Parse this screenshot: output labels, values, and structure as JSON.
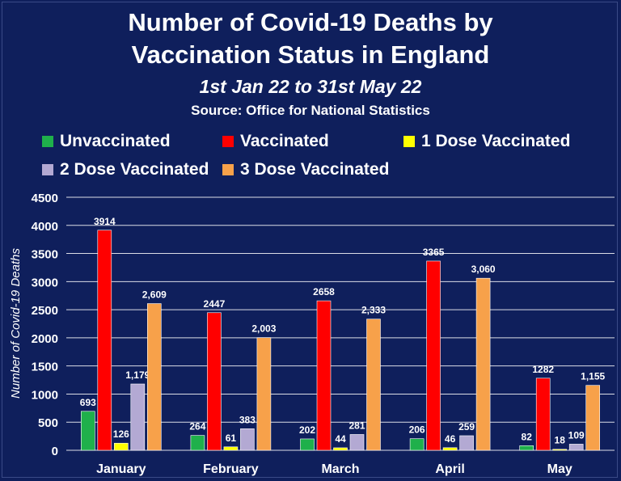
{
  "colors": {
    "background": "#0f1f5c",
    "Unvaccinated": "#1fb04b",
    "Vaccinated": "#ff0000",
    "1 Dose Vaccinated": "#ffff00",
    "2 Dose Vaccinated": "#b3a9d3",
    "3 Dose Vaccinated": "#f7a14a"
  },
  "chart_data": {
    "type": "bar",
    "title": "Number of Covid-19 Deaths by Vaccination Status in England",
    "title_line1": "Number of Covid-19 Deaths by",
    "title_line2": "Vaccination Status in England",
    "subtitle": "1st Jan 22 to 31st May 22",
    "source": "Source: Office for National Statistics",
    "ylabel": "Number of Covid-19 Deaths",
    "xlabel": "",
    "ylim": [
      0,
      4500
    ],
    "yticks": [
      "0",
      "500",
      "1000",
      "1500",
      "2000",
      "2500",
      "3000",
      "3500",
      "4000",
      "4500"
    ],
    "grid": true,
    "legend_position": "top",
    "categories": [
      "January",
      "February",
      "March",
      "April",
      "May"
    ],
    "series": [
      {
        "name": "Unvaccinated",
        "values": [
          693,
          264,
          202,
          206,
          82
        ],
        "labels": [
          "693",
          "264",
          "202",
          "206",
          "82"
        ]
      },
      {
        "name": "Vaccinated",
        "values": [
          3914,
          2447,
          2658,
          3365,
          1282
        ],
        "labels": [
          "3914",
          "2447",
          "2658",
          "3365",
          "1282"
        ]
      },
      {
        "name": "1 Dose Vaccinated",
        "values": [
          126,
          61,
          44,
          46,
          18
        ],
        "labels": [
          "126",
          "61",
          "44",
          "46",
          "18"
        ]
      },
      {
        "name": "2 Dose Vaccinated",
        "values": [
          1179,
          383,
          281,
          259,
          109
        ],
        "labels": [
          "1,179",
          "383",
          "281",
          "259",
          "109"
        ]
      },
      {
        "name": "3 Dose Vaccinated",
        "values": [
          2609,
          2003,
          2333,
          3060,
          1155
        ],
        "labels": [
          "2,609",
          "2,003",
          "2,333",
          "3,060",
          "1,155"
        ]
      }
    ]
  }
}
